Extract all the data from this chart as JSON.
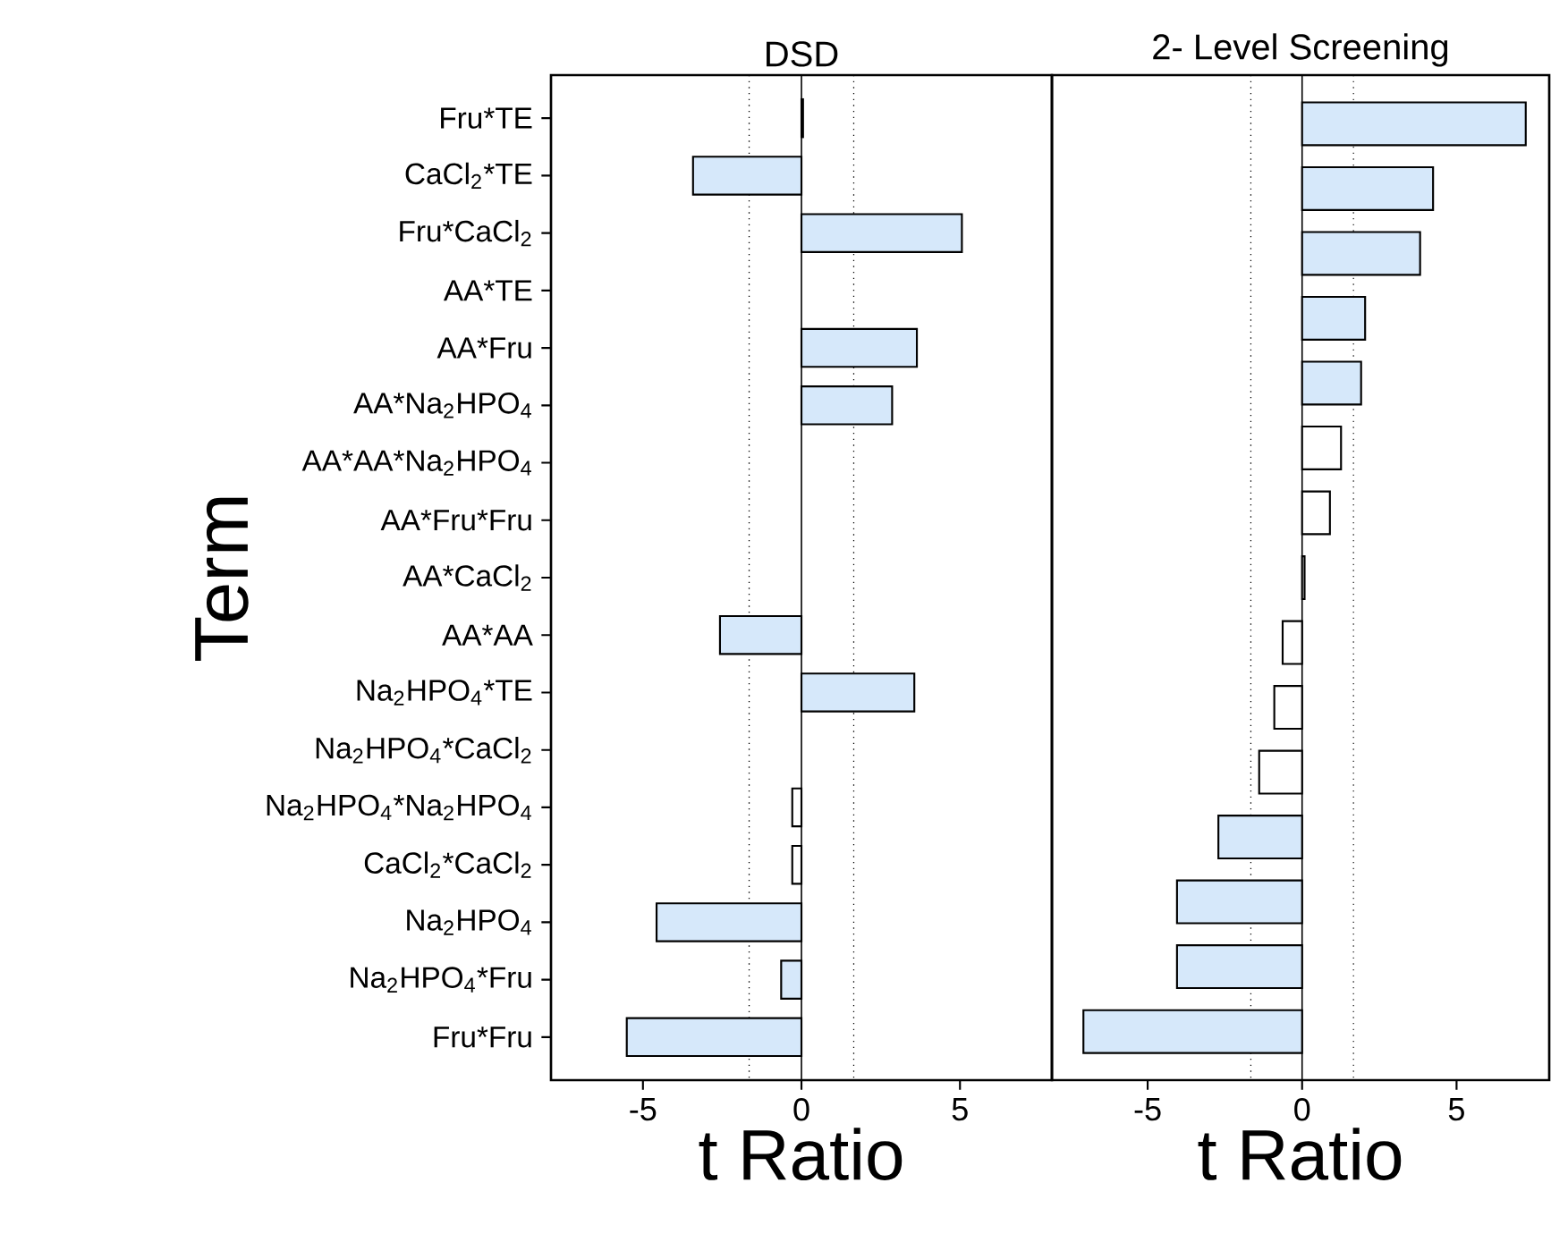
{
  "chart_data": [
    {
      "type": "bar",
      "orientation": "horizontal",
      "title": "DSD",
      "xlabel": "t Ratio",
      "ylabel": "Term",
      "categories": [
        "Fru*TE",
        "CaCl$_{2}$*TE",
        "Fru*CaCl$_{2}$",
        "AA*TE",
        "AA*Fru",
        "AA*Na$_{2}$HPO$_{4}$",
        "AA*AA*Na$_{2}$HPO$_{4}$",
        "AA*Fru*Fru",
        "AA*CaCl$_{2}$",
        "AA*AA",
        "Na$_{2}$HPO$_{4}$*TE",
        "Na$_{2}$HPO$_{4}$*CaCl$_{2}$",
        "Na$_{2}$HPO$_{4}$*Na$_{2}$HPO$_{4}$",
        "CaCl$_{2}$*CaCl$_{2}$",
        "Na$_{2}$HPO$_{4}$",
        "Na$_{2}$HPO$_{4}$*Fru",
        "Fru*Fru"
      ],
      "values": [
        0.05,
        -3.42,
        5.06,
        null,
        3.64,
        2.86,
        null,
        null,
        null,
        -2.57,
        3.56,
        null,
        -0.29,
        -0.29,
        -4.57,
        -0.64,
        -5.51
      ],
      "colors": [
        "#ffffff",
        "#d6e8fa",
        "#d6e8fa",
        "#ffffff",
        "#d6e8fa",
        "#d6e8fa",
        "#ffffff",
        "#ffffff",
        "#ffffff",
        "#d6e8fa",
        "#d6e8fa",
        "#ffffff",
        "#ffffff",
        "#ffffff",
        "#d6e8fa",
        "#d6e8fa",
        "#d6e8fa"
      ],
      "xlim": [
        -7.9,
        7.9
      ],
      "xticks": [
        -5,
        0,
        5
      ],
      "ref_lines": [
        {
          "axis": "x",
          "value": 0,
          "line_style": "solid"
        },
        {
          "axis": "x",
          "value": -1.65,
          "line_style": "dotted"
        },
        {
          "axis": "x",
          "value": 1.65,
          "line_style": "dotted"
        }
      ]
    },
    {
      "type": "bar",
      "orientation": "horizontal",
      "title": "2- Level Screening",
      "xlabel": "t Ratio",
      "categories": [
        null,
        null,
        null,
        null,
        null,
        null,
        null,
        null,
        null,
        null,
        null,
        null,
        null,
        null,
        null
      ],
      "values": [
        7.24,
        4.24,
        3.82,
        2.04,
        1.91,
        1.26,
        0.9,
        0.08,
        -0.63,
        -0.9,
        -1.39,
        -2.71,
        -4.05,
        -4.05,
        -7.08
      ],
      "colors": [
        "#d6e8fa",
        "#d6e8fa",
        "#d6e8fa",
        "#d6e8fa",
        "#d6e8fa",
        "#ffffff",
        "#ffffff",
        "#ffffff",
        "#ffffff",
        "#ffffff",
        "#ffffff",
        "#d6e8fa",
        "#d6e8fa",
        "#d6e8fa",
        "#d6e8fa"
      ],
      "xlim": [
        -8.1,
        8.0
      ],
      "xticks": [
        -5,
        0,
        5
      ],
      "tick_labels": "x",
      "ref_lines": [
        {
          "axis": "x",
          "value": 0,
          "line_style": "solid"
        },
        {
          "axis": "x",
          "value": -1.66,
          "line_style": "dotted"
        },
        {
          "axis": "x",
          "value": 1.66,
          "line_style": "dotted"
        }
      ]
    }
  ]
}
